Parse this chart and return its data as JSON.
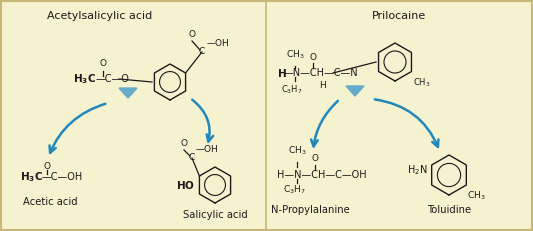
{
  "background_color": "#f5f2d0",
  "border_color": "#c8b878",
  "title_left": "Acetylsalicylic acid",
  "title_right": "Prilocaine",
  "label_acetic": "Acetic acid",
  "label_salicylic": "Salicylic acid",
  "label_npropylalanine": "N-Propylalanine",
  "label_toluidine": "Toluidine",
  "arrow_color": "#2288bb",
  "triangle_color": "#66aacc",
  "text_color": "#1a1a1a",
  "bold_color": "#000000",
  "figsize": [
    5.33,
    2.31
  ],
  "dpi": 100
}
